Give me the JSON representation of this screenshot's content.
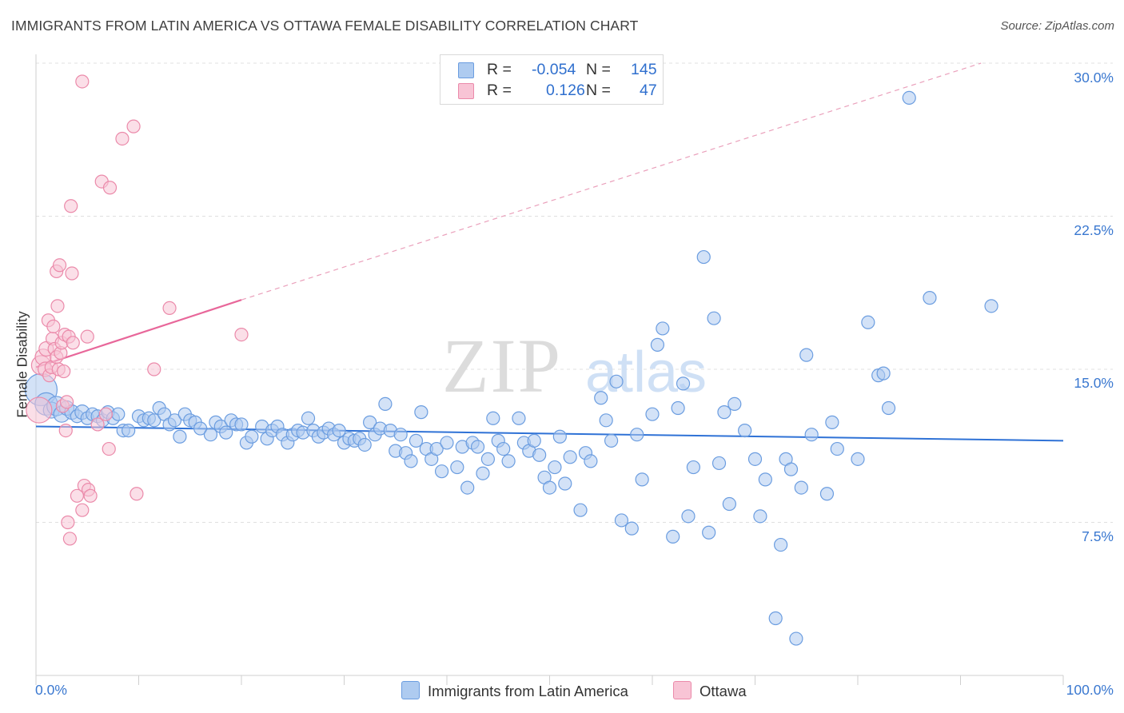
{
  "title": "IMMIGRANTS FROM LATIN AMERICA VS OTTAWA FEMALE DISABILITY CORRELATION CHART",
  "source": "Source: ZipAtlas.com",
  "watermark": {
    "zip": "ZIP",
    "atlas": "atlas"
  },
  "colors": {
    "blue_fill": "#aecbf0",
    "blue_stroke": "#6b9de0",
    "blue_line": "#2f72d6",
    "pink_fill": "#f8c4d5",
    "pink_stroke": "#eb8aaa",
    "pink_line": "#e8679a",
    "axis_text": "#3a78d0",
    "grid": "#e0e0e0"
  },
  "legend": {
    "series": [
      {
        "r_label": "R =",
        "r_value": "-0.054",
        "n_label": "N =",
        "n_value": "145"
      },
      {
        "r_label": "R =",
        "r_value": "0.126",
        "n_label": "N =",
        "n_value": "47"
      }
    ]
  },
  "bottom_legend": [
    "Immigrants from Latin America",
    "Ottawa"
  ],
  "axes": {
    "y_title": "Female Disability",
    "y_ticks": [
      "7.5%",
      "15.0%",
      "22.5%",
      "30.0%"
    ],
    "x_min_label": "0.0%",
    "x_max_label": "100.0%"
  },
  "chart_data": {
    "type": "scatter",
    "title": "IMMIGRANTS FROM LATIN AMERICA VS OTTAWA FEMALE DISABILITY CORRELATION CHART",
    "xlabel": "",
    "ylabel": "Female Disability",
    "xlim": [
      0,
      100
    ],
    "ylim": [
      0,
      31.5
    ],
    "y_ticks": [
      7.5,
      15.0,
      22.5,
      30.0
    ],
    "grid": true,
    "series": [
      {
        "name": "Immigrants from Latin America",
        "r": -0.054,
        "n": 145,
        "trend": {
          "x0": 0,
          "y0": 12.2,
          "x1": 100,
          "y1": 11.5
        },
        "points": [
          [
            0.5,
            14.0,
            20
          ],
          [
            1,
            13.3,
            14
          ],
          [
            1.5,
            13.0,
            10
          ],
          [
            2,
            13.2,
            12
          ],
          [
            2.5,
            12.8,
            10
          ],
          [
            3,
            13.1,
            9
          ],
          [
            3.5,
            12.9,
            9
          ],
          [
            4,
            12.7,
            8
          ],
          [
            4.5,
            12.9,
            9
          ],
          [
            5,
            12.6,
            8
          ],
          [
            5.5,
            12.8,
            8
          ],
          [
            6,
            12.7,
            8
          ],
          [
            6.5,
            12.5,
            8
          ],
          [
            7,
            12.9,
            8
          ],
          [
            7.5,
            12.6,
            8
          ],
          [
            8,
            12.8,
            8
          ],
          [
            8.5,
            12.0,
            8
          ],
          [
            9,
            12.0,
            8
          ],
          [
            10,
            12.7,
            8
          ],
          [
            10.5,
            12.5,
            8
          ],
          [
            11,
            12.6,
            8
          ],
          [
            11.5,
            12.5,
            8
          ],
          [
            12,
            13.1,
            8
          ],
          [
            12.5,
            12.8,
            8
          ],
          [
            13,
            12.3,
            8
          ],
          [
            13.5,
            12.5,
            8
          ],
          [
            14,
            11.7,
            8
          ],
          [
            14.5,
            12.8,
            8
          ],
          [
            15,
            12.5,
            8
          ],
          [
            15.5,
            12.4,
            8
          ],
          [
            16,
            12.1,
            8
          ],
          [
            17,
            11.8,
            8
          ],
          [
            17.5,
            12.4,
            8
          ],
          [
            18,
            12.2,
            8
          ],
          [
            18.5,
            11.9,
            8
          ],
          [
            19,
            12.5,
            8
          ],
          [
            19.5,
            12.3,
            8
          ],
          [
            20,
            12.3,
            8
          ],
          [
            20.5,
            11.4,
            8
          ],
          [
            21,
            11.7,
            8
          ],
          [
            22,
            12.2,
            8
          ],
          [
            22.5,
            11.6,
            8
          ],
          [
            23,
            12.0,
            8
          ],
          [
            23.5,
            12.2,
            8
          ],
          [
            24,
            11.8,
            8
          ],
          [
            24.5,
            11.4,
            8
          ],
          [
            25,
            11.8,
            8
          ],
          [
            25.5,
            12.0,
            8
          ],
          [
            26,
            11.9,
            8
          ],
          [
            26.5,
            12.6,
            8
          ],
          [
            27,
            12.0,
            8
          ],
          [
            27.5,
            11.7,
            8
          ],
          [
            28,
            11.9,
            8
          ],
          [
            28.5,
            12.1,
            8
          ],
          [
            29,
            11.8,
            8
          ],
          [
            29.5,
            12.0,
            8
          ],
          [
            30,
            11.4,
            8
          ],
          [
            30.5,
            11.6,
            8
          ],
          [
            31,
            11.5,
            8
          ],
          [
            31.5,
            11.6,
            8
          ],
          [
            32,
            11.3,
            8
          ],
          [
            32.5,
            12.4,
            8
          ],
          [
            33,
            11.8,
            8
          ],
          [
            33.5,
            12.1,
            8
          ],
          [
            34,
            13.3,
            8
          ],
          [
            34.5,
            12.0,
            8
          ],
          [
            35,
            11.0,
            8
          ],
          [
            35.5,
            11.8,
            8
          ],
          [
            36,
            10.9,
            8
          ],
          [
            36.5,
            10.5,
            8
          ],
          [
            37,
            11.5,
            8
          ],
          [
            37.5,
            12.9,
            8
          ],
          [
            38,
            11.1,
            8
          ],
          [
            38.5,
            10.6,
            8
          ],
          [
            39,
            11.1,
            8
          ],
          [
            39.5,
            10.0,
            8
          ],
          [
            40,
            11.4,
            8
          ],
          [
            41,
            10.2,
            8
          ],
          [
            41.5,
            11.2,
            8
          ],
          [
            42,
            9.2,
            8
          ],
          [
            42.5,
            11.4,
            8
          ],
          [
            43,
            11.2,
            8
          ],
          [
            43.5,
            9.9,
            8
          ],
          [
            44,
            10.6,
            8
          ],
          [
            44.5,
            12.6,
            8
          ],
          [
            45,
            11.5,
            8
          ],
          [
            45.5,
            11.1,
            8
          ],
          [
            46,
            10.5,
            8
          ],
          [
            47,
            12.6,
            8
          ],
          [
            47.5,
            11.4,
            8
          ],
          [
            48,
            11.0,
            8
          ],
          [
            48.5,
            11.5,
            8
          ],
          [
            49,
            10.8,
            8
          ],
          [
            49.5,
            9.7,
            8
          ],
          [
            50,
            9.2,
            8
          ],
          [
            50.5,
            10.2,
            8
          ],
          [
            51,
            11.7,
            8
          ],
          [
            51.5,
            9.4,
            8
          ],
          [
            52,
            10.7,
            8
          ],
          [
            53,
            8.1,
            8
          ],
          [
            53.5,
            10.9,
            8
          ],
          [
            54,
            10.5,
            8
          ],
          [
            55,
            13.6,
            8
          ],
          [
            55.5,
            12.5,
            8
          ],
          [
            56,
            11.5,
            8
          ],
          [
            56.5,
            14.4,
            8
          ],
          [
            57,
            7.6,
            8
          ],
          [
            58,
            7.2,
            8
          ],
          [
            58.5,
            11.8,
            8
          ],
          [
            59,
            9.6,
            8
          ],
          [
            60,
            12.8,
            8
          ],
          [
            60.5,
            16.2,
            8
          ],
          [
            61,
            17.0,
            8
          ],
          [
            62,
            6.8,
            8
          ],
          [
            62.5,
            13.1,
            8
          ],
          [
            63,
            14.3,
            8
          ],
          [
            63.5,
            7.8,
            8
          ],
          [
            64,
            10.2,
            8
          ],
          [
            65,
            20.5,
            8
          ],
          [
            65.5,
            7.0,
            8
          ],
          [
            66,
            17.5,
            8
          ],
          [
            66.5,
            10.4,
            8
          ],
          [
            67,
            12.9,
            8
          ],
          [
            67.5,
            8.4,
            8
          ],
          [
            68,
            13.3,
            8
          ],
          [
            69,
            12.0,
            8
          ],
          [
            70,
            10.6,
            8
          ],
          [
            70.5,
            7.8,
            8
          ],
          [
            71,
            9.6,
            8
          ],
          [
            72,
            2.8,
            8
          ],
          [
            72.5,
            6.4,
            8
          ],
          [
            73,
            10.6,
            8
          ],
          [
            73.5,
            10.1,
            8
          ],
          [
            74,
            1.8,
            8
          ],
          [
            74.5,
            9.2,
            8
          ],
          [
            75,
            15.7,
            8
          ],
          [
            75.5,
            11.8,
            8
          ],
          [
            77,
            8.9,
            8
          ],
          [
            77.5,
            12.4,
            8
          ],
          [
            78,
            11.1,
            8
          ],
          [
            80,
            10.6,
            8
          ],
          [
            81,
            17.3,
            8
          ],
          [
            82,
            14.7,
            8
          ],
          [
            82.5,
            14.8,
            8
          ],
          [
            83,
            13.1,
            8
          ],
          [
            85,
            28.3,
            8
          ],
          [
            87,
            18.5,
            8
          ],
          [
            93,
            18.1,
            8
          ]
        ]
      },
      {
        "name": "Ottawa",
        "r": 0.126,
        "n": 47,
        "trend": {
          "x0": 0,
          "y0": 15.1,
          "x1": 20,
          "y1": 18.4,
          "dash_x1": 92,
          "dash_y1": 30.0
        },
        "points": [
          [
            0.3,
            13.0,
            16
          ],
          [
            0.5,
            15.2,
            12
          ],
          [
            0.7,
            15.6,
            10
          ],
          [
            0.9,
            15.0,
            9
          ],
          [
            1,
            16.0,
            9
          ],
          [
            1.2,
            17.4,
            8
          ],
          [
            1.3,
            14.7,
            8
          ],
          [
            1.5,
            15.1,
            8
          ],
          [
            1.6,
            16.5,
            8
          ],
          [
            1.7,
            17.1,
            8
          ],
          [
            1.8,
            16.0,
            8
          ],
          [
            2,
            19.8,
            8
          ],
          [
            2,
            15.6,
            8
          ],
          [
            2.1,
            18.1,
            8
          ],
          [
            2.2,
            15.0,
            8
          ],
          [
            2.3,
            20.1,
            8
          ],
          [
            2.4,
            15.8,
            8
          ],
          [
            2.5,
            16.3,
            8
          ],
          [
            2.6,
            13.2,
            8
          ],
          [
            2.7,
            14.9,
            8
          ],
          [
            2.8,
            16.7,
            8
          ],
          [
            2.9,
            12.0,
            8
          ],
          [
            3,
            13.4,
            8
          ],
          [
            3.1,
            7.5,
            8
          ],
          [
            3.2,
            16.6,
            8
          ],
          [
            3.3,
            6.7,
            8
          ],
          [
            3.4,
            23.0,
            8
          ],
          [
            3.5,
            19.7,
            8
          ],
          [
            3.6,
            16.3,
            8
          ],
          [
            4,
            8.8,
            8
          ],
          [
            4.5,
            8.1,
            8
          ],
          [
            4.5,
            29.1,
            8
          ],
          [
            4.7,
            9.3,
            8
          ],
          [
            5,
            16.6,
            8
          ],
          [
            5.1,
            9.1,
            8
          ],
          [
            5.3,
            8.8,
            8
          ],
          [
            6,
            12.3,
            8
          ],
          [
            6.4,
            24.2,
            8
          ],
          [
            7.1,
            11.1,
            8
          ],
          [
            7.2,
            23.9,
            8
          ],
          [
            8.4,
            26.3,
            8
          ],
          [
            9.5,
            26.9,
            8
          ],
          [
            9.8,
            8.9,
            8
          ],
          [
            11.5,
            15.0,
            8
          ],
          [
            13,
            18.0,
            8
          ],
          [
            20,
            16.7,
            8
          ],
          [
            6.8,
            12.8,
            8
          ]
        ]
      }
    ]
  }
}
